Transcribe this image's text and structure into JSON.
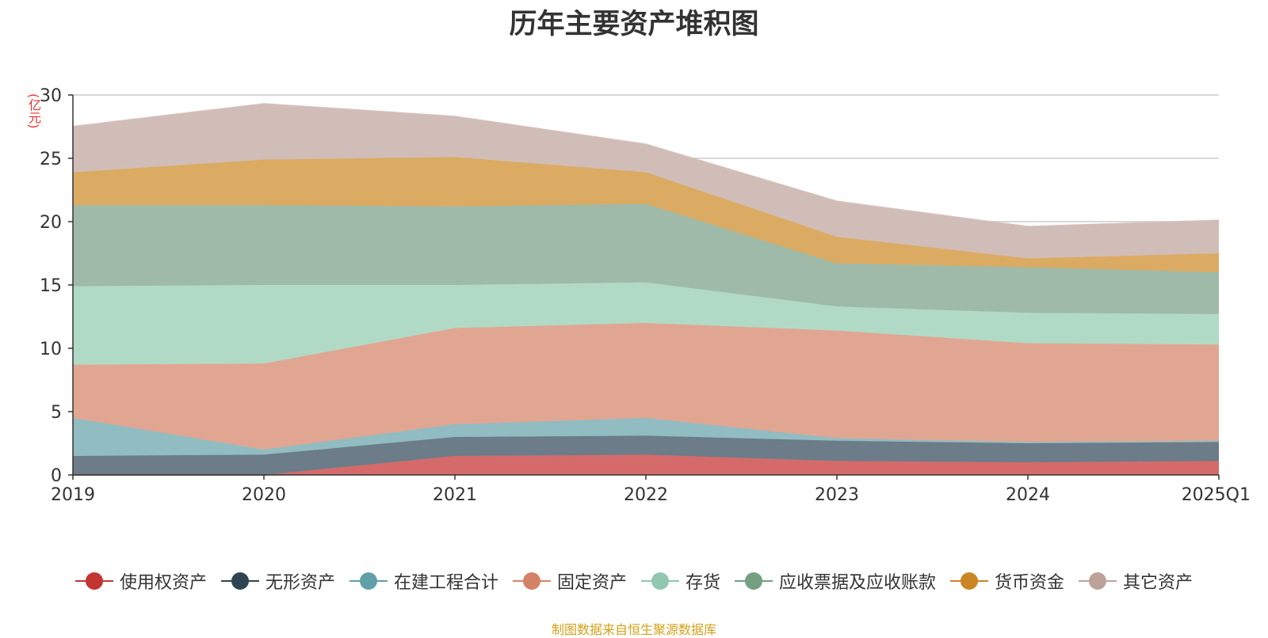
{
  "chart_data": {
    "type": "area",
    "stacked": true,
    "title": "历年主要资产堆积图",
    "unit_label": "(亿元)",
    "x": [
      "2019",
      "2020",
      "2021",
      "2022",
      "2023",
      "2024",
      "2025Q1"
    ],
    "ylim": [
      0,
      30
    ],
    "yticks": [
      0,
      5,
      10,
      15,
      20,
      25,
      30
    ],
    "grid": true,
    "legend_position": "bottom",
    "series": [
      {
        "name": "使用权资产",
        "color": "#c23531",
        "fill": "#d46b6a",
        "values": [
          0,
          0,
          1.5,
          1.6,
          1.1,
          1.0,
          1.1
        ]
      },
      {
        "name": "无形资产",
        "color": "#2f4554",
        "fill": "#6c7c88",
        "values": [
          1.5,
          1.6,
          1.5,
          1.5,
          1.6,
          1.5,
          1.5
        ]
      },
      {
        "name": "在建工程合计",
        "color": "#61a0a8",
        "fill": "#90bcc2",
        "values": [
          3.0,
          0.4,
          1.0,
          1.4,
          0.2,
          0.1,
          0.1
        ]
      },
      {
        "name": "固定资产",
        "color": "#d48265",
        "fill": "#e0a692",
        "values": [
          4.2,
          6.8,
          7.6,
          7.5,
          8.5,
          7.8,
          7.6
        ]
      },
      {
        "name": "存货",
        "color": "#91c7ae",
        "fill": "#b1dac6",
        "values": [
          6.2,
          6.2,
          3.4,
          3.2,
          1.9,
          2.4,
          2.4
        ]
      },
      {
        "name": "应收票据及应收账款",
        "color": "#749f83",
        "fill": "#9fbaa8",
        "values": [
          6.4,
          6.3,
          6.2,
          6.2,
          3.4,
          3.6,
          3.3
        ]
      },
      {
        "name": "货币资金",
        "color": "#ca8622",
        "fill": "#dbab63",
        "values": [
          2.6,
          3.6,
          3.9,
          2.5,
          2.1,
          0.7,
          1.5
        ]
      },
      {
        "name": "其它资产",
        "color": "#bda29a",
        "fill": "#d1bdb7",
        "values": [
          3.6,
          4.4,
          3.2,
          2.2,
          2.8,
          2.5,
          2.6
        ]
      }
    ]
  },
  "source_note": "制图数据来自恒生聚源数据库"
}
